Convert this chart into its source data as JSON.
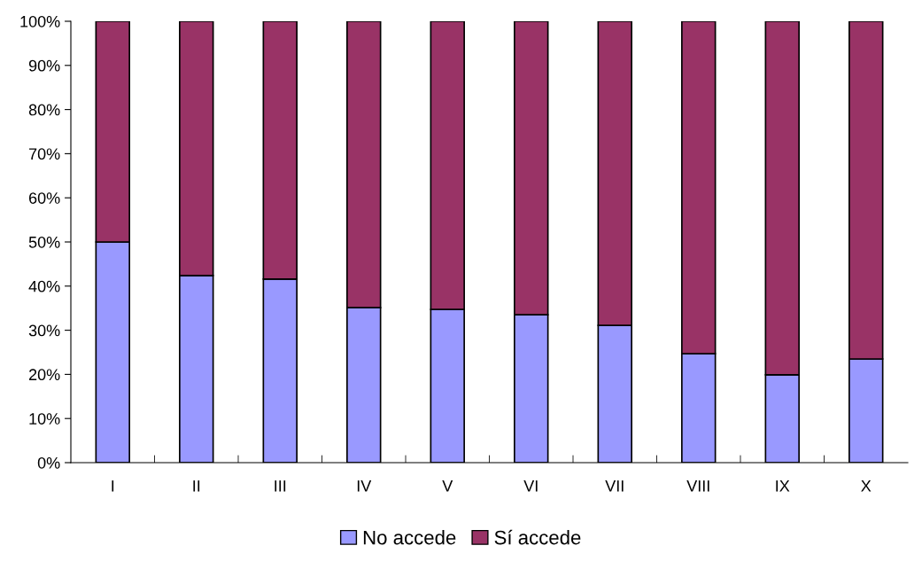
{
  "chart_data": {
    "type": "bar",
    "stacked": true,
    "categories": [
      "I",
      "II",
      "III",
      "IV",
      "V",
      "VI",
      "VII",
      "VIII",
      "IX",
      "X"
    ],
    "series": [
      {
        "name": "No accede",
        "color": "#9999ff",
        "values": [
          50.0,
          42.4,
          41.6,
          35.1,
          34.7,
          33.5,
          31.1,
          24.7,
          19.9,
          23.5
        ]
      },
      {
        "name": "Sí accede",
        "color": "#993366",
        "values": [
          50.0,
          57.6,
          58.4,
          64.9,
          65.3,
          66.5,
          68.9,
          75.3,
          80.1,
          76.5
        ]
      }
    ],
    "ylim": [
      0,
      100
    ],
    "yticks": [
      {
        "value": 0,
        "label": "0%"
      },
      {
        "value": 10,
        "label": "10%"
      },
      {
        "value": 20,
        "label": "20%"
      },
      {
        "value": 30,
        "label": "30%"
      },
      {
        "value": 40,
        "label": "40%"
      },
      {
        "value": 50,
        "label": "50%"
      },
      {
        "value": 60,
        "label": "60%"
      },
      {
        "value": 70,
        "label": "70%"
      },
      {
        "value": 80,
        "label": "80%"
      },
      {
        "value": 90,
        "label": "90%"
      },
      {
        "value": 100,
        "label": "100%"
      }
    ],
    "grid": false,
    "legend": "bottom"
  }
}
